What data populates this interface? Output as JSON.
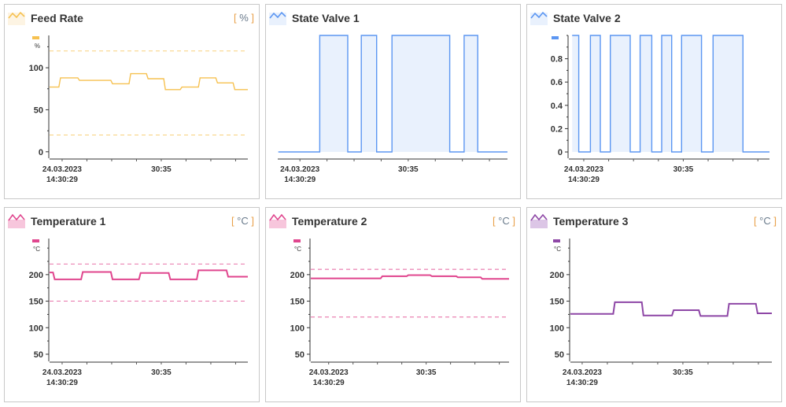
{
  "charts": [
    {
      "title": "Feed Rate",
      "unit": "%",
      "icon": "line-chart-icon",
      "color": "#f6c150",
      "fill": null,
      "yunit": "%",
      "ylim": [
        -3,
        138.5
      ],
      "yticks": [
        0,
        50,
        100
      ],
      "yminor": 25,
      "yaxis": true,
      "xlim": [
        "14:30:28.24",
        "14:30:40.24"
      ],
      "thresholds": [
        120,
        20
      ],
      "steps": [
        [
          "14:30:28.24",
          77
        ],
        [
          "14:30:28.8",
          88
        ],
        [
          "14:30:29.95",
          85
        ],
        [
          "14:30:31.95",
          81
        ],
        [
          "14:30:33.05",
          93
        ],
        [
          "14:30:34.1",
          87
        ],
        [
          "14:30:35.15",
          74
        ],
        [
          "14:30:36.15",
          77
        ],
        [
          "14:30:37.25",
          88
        ],
        [
          "14:30:38.3",
          82
        ],
        [
          "14:30:39.35",
          74
        ]
      ]
    },
    {
      "title": "State Valve 1",
      "unit": "",
      "icon": "line-chart-icon",
      "color": "#5b96f2",
      "fill": "#e9f1fd",
      "yunit": "",
      "ylim": [
        -0.02,
        1.0
      ],
      "yticks": [],
      "yminor": null,
      "yaxis": false,
      "xlim": [
        "14:30:27.77",
        "14:30:40.5"
      ],
      "thresholds": [],
      "steps": [
        [
          "14:30:27.8",
          0
        ],
        [
          "14:30:30.1",
          1
        ],
        [
          "14:30:31.65",
          0
        ],
        [
          "14:30:32.4",
          1
        ],
        [
          "14:30:33.25",
          0
        ],
        [
          "14:30:34.1",
          1
        ],
        [
          "14:30:37.3",
          0
        ],
        [
          "14:30:38.1",
          1
        ],
        [
          "14:30:38.85",
          0
        ]
      ]
    },
    {
      "title": "State Valve 2",
      "unit": "",
      "icon": "line-chart-icon",
      "color": "#5b96f2",
      "fill": "#e9f1fd",
      "yunit": "",
      "ylim": [
        -0.02,
        1.0
      ],
      "yticks": [
        0,
        0.2,
        0.4,
        0.6,
        0.8
      ],
      "yminor": 0.1,
      "yaxis": true,
      "xlim": [
        "14:30:28.1",
        "14:30:40.2"
      ],
      "thresholds": [],
      "steps": [
        [
          "14:30:28.3",
          1
        ],
        [
          "14:30:28.7",
          0
        ],
        [
          "14:30:29.4",
          1
        ],
        [
          "14:30:30.0",
          0
        ],
        [
          "14:30:30.6",
          1
        ],
        [
          "14:30:31.8",
          0
        ],
        [
          "14:30:32.4",
          1
        ],
        [
          "14:30:33.1",
          0
        ],
        [
          "14:30:33.7",
          1
        ],
        [
          "14:30:34.3",
          0
        ],
        [
          "14:30:34.9",
          1
        ],
        [
          "14:30:36.1",
          0
        ],
        [
          "14:30:36.8",
          1
        ],
        [
          "14:30:38.6",
          0
        ]
      ]
    },
    {
      "title": "Temperature 1",
      "unit": "°C",
      "icon": "area-chart-icon",
      "color": "#e0468e",
      "fill": null,
      "yunit": "°C",
      "ylim": [
        44,
        268
      ],
      "yticks": [
        50,
        100,
        150,
        200
      ],
      "yminor": 25,
      "yaxis": true,
      "xlim": [
        "14:30:28.24",
        "14:30:40.24"
      ],
      "thresholds": [
        220,
        150
      ],
      "steps": [
        [
          "14:30:28.24",
          204
        ],
        [
          "14:30:28.45",
          191
        ],
        [
          "14:30:30.15",
          205
        ],
        [
          "14:30:31.95",
          191
        ],
        [
          "14:30:33.65",
          203
        ],
        [
          "14:30:35.45",
          191
        ],
        [
          "14:30:37.15",
          208
        ],
        [
          "14:30:38.95",
          196
        ]
      ]
    },
    {
      "title": "Temperature 2",
      "unit": "°C",
      "icon": "area-chart-icon",
      "color": "#e0468e",
      "fill": null,
      "yunit": "°C",
      "ylim": [
        44,
        268
      ],
      "yticks": [
        50,
        100,
        150,
        200
      ],
      "yminor": 25,
      "yaxis": true,
      "xlim": [
        "14:30:27.9",
        "14:30:40.1"
      ],
      "thresholds": [
        210,
        120
      ],
      "steps": [
        [
          "14:30:27.9",
          193
        ],
        [
          "14:30:32.2",
          197
        ],
        [
          "14:30:33.8",
          199
        ],
        [
          "14:30:35.25",
          197
        ],
        [
          "14:30:36.85",
          195
        ],
        [
          "14:30:38.35",
          192
        ]
      ]
    },
    {
      "title": "Temperature 3",
      "unit": "°C",
      "icon": "area-chart-icon",
      "color": "#8e47a6",
      "fill": null,
      "yunit": "°C",
      "ylim": [
        44,
        268
      ],
      "yticks": [
        50,
        100,
        150,
        200
      ],
      "yminor": 25,
      "yaxis": true,
      "xlim": [
        "14:30:28.3",
        "14:30:40.3"
      ],
      "thresholds": [],
      "steps": [
        [
          "14:30:28.3",
          126
        ],
        [
          "14:30:30.85",
          148
        ],
        [
          "14:30:32.55",
          123
        ],
        [
          "14:30:34.35",
          133
        ],
        [
          "14:30:35.95",
          122
        ],
        [
          "14:30:37.65",
          145
        ],
        [
          "14:30:39.35",
          127
        ]
      ]
    }
  ],
  "x_ticks": [
    {
      "t": "14:30:29",
      "label": [
        "24.03.2023",
        "14:30:29"
      ]
    },
    {
      "t": "14:30:35",
      "label": [
        "30:35"
      ]
    }
  ],
  "x_minor_step_s": 1.5
}
